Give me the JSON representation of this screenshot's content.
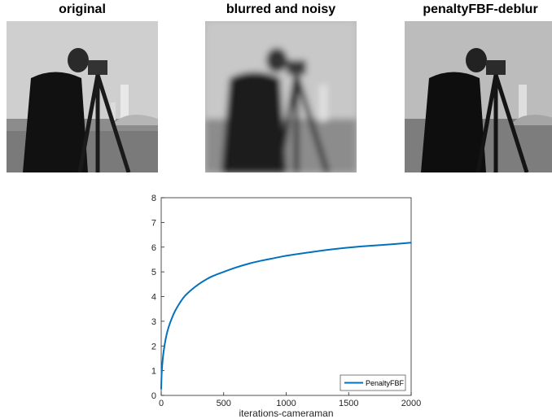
{
  "panels": [
    {
      "title": "original"
    },
    {
      "title": "blurred and noisy"
    },
    {
      "title": "penaltyFBF-deblur"
    }
  ],
  "chart_data": {
    "type": "line",
    "title": "",
    "xlabel": "iterations-cameraman",
    "ylabel": "",
    "xlim": [
      0,
      2000
    ],
    "ylim": [
      0,
      8
    ],
    "xticks": [
      "0",
      "500",
      "1000",
      "1500",
      "2000"
    ],
    "yticks": [
      "0",
      "1",
      "2",
      "3",
      "4",
      "5",
      "6",
      "7",
      "8"
    ],
    "grid": false,
    "legend_position": "bottom-right",
    "series": [
      {
        "name": "PenaltyFBF",
        "color": "#0072BD",
        "x": [
          0,
          5,
          20,
          50,
          100,
          150,
          200,
          300,
          400,
          500,
          600,
          700,
          800,
          900,
          1000,
          1200,
          1400,
          1600,
          1800,
          2000
        ],
        "y": [
          0.25,
          1.0,
          1.8,
          2.6,
          3.3,
          3.75,
          4.08,
          4.5,
          4.8,
          5.0,
          5.18,
          5.33,
          5.45,
          5.55,
          5.65,
          5.8,
          5.93,
          6.03,
          6.1,
          6.18
        ]
      }
    ]
  }
}
